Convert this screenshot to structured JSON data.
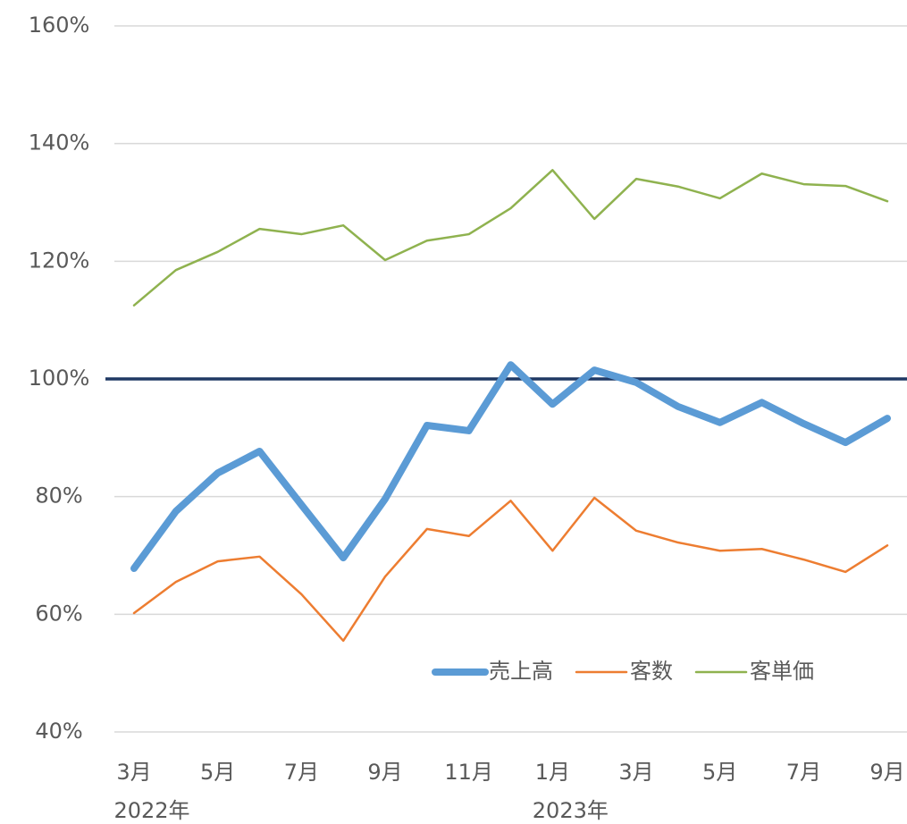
{
  "chart_data": {
    "type": "line",
    "categories": [
      "3月",
      null,
      "5月",
      null,
      "7月",
      null,
      "9月",
      null,
      "11月",
      null,
      "1月",
      null,
      "3月",
      null,
      "5月",
      null,
      "7月",
      null,
      "9月"
    ],
    "x_groups": [
      "2022年",
      null,
      null,
      null,
      null,
      null,
      null,
      null,
      null,
      null,
      "2023年",
      null,
      null,
      null,
      null,
      null,
      null,
      null,
      null
    ],
    "series": [
      {
        "name": "売上高",
        "color": "#5b9bd5",
        "width": 8,
        "values": [
          67.8,
          77.5,
          84.0,
          87.7,
          78.6,
          69.6,
          79.6,
          92.1,
          91.2,
          102.4,
          95.7,
          101.5,
          99.4,
          95.3,
          92.6,
          96.0,
          92.4,
          89.2,
          93.3
        ]
      },
      {
        "name": "客数",
        "color": "#ed7d31",
        "width": 2.5,
        "values": [
          60.2,
          65.5,
          69.0,
          69.8,
          63.4,
          55.5,
          66.4,
          74.5,
          73.3,
          79.3,
          70.8,
          79.8,
          74.2,
          72.2,
          70.8,
          71.1,
          69.3,
          67.2,
          71.7
        ]
      },
      {
        "name": "客単価",
        "color": "#8fb24f",
        "width": 2.5,
        "values": [
          112.5,
          118.5,
          121.6,
          125.5,
          124.6,
          126.1,
          120.2,
          123.5,
          124.6,
          129.0,
          135.5,
          127.2,
          134.0,
          132.7,
          130.7,
          134.9,
          133.1,
          132.8,
          130.2
        ]
      }
    ],
    "ylim": [
      40,
      160
    ],
    "yticks": [
      {
        "value": 40,
        "label": "40%"
      },
      {
        "value": 60,
        "label": "60%"
      },
      {
        "value": 80,
        "label": "80%"
      },
      {
        "value": 100,
        "label": "100%"
      },
      {
        "value": 120,
        "label": "120%"
      },
      {
        "value": 140,
        "label": "140%"
      },
      {
        "value": 160,
        "label": "160%"
      }
    ],
    "grid": true,
    "hline": {
      "value": 100,
      "color": "#1f3864"
    },
    "legend": "lower right"
  }
}
